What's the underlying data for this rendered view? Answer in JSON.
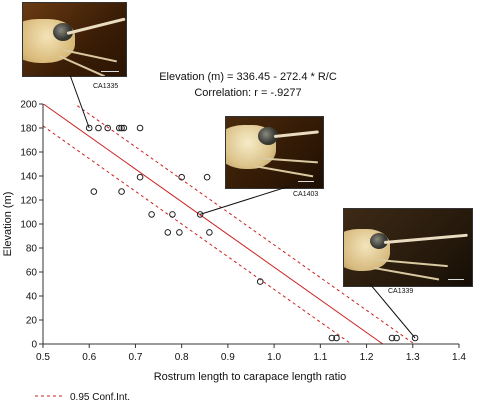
{
  "chart_data": {
    "type": "scatter",
    "title_line1": "Elevation (m) = 336.45 - 272.4  * R/C",
    "title_line2": "Correlation: r = -.9277",
    "xlabel": "Rostrum length to carapace length ratio",
    "ylabel": "Elevation (m)",
    "xlim": [
      0.5,
      1.4
    ],
    "ylim": [
      0,
      200
    ],
    "x_ticks": [
      "0.5",
      "0.6",
      "0.7",
      "0.8",
      "0.9",
      "1.0",
      "1.1",
      "1.2",
      "1.3",
      "1.4"
    ],
    "y_ticks": [
      "0",
      "20",
      "40",
      "60",
      "80",
      "100",
      "120",
      "140",
      "160",
      "180",
      "200"
    ],
    "grid": false,
    "regression": {
      "intercept": 336.45,
      "slope": -272.4
    },
    "confidence_band": {
      "label": "0.95 Conf.Int.",
      "upper_intercept": 355.0,
      "lower_intercept": 317.9
    },
    "points": [
      {
        "x": 0.6,
        "y": 180
      },
      {
        "x": 0.62,
        "y": 180
      },
      {
        "x": 0.64,
        "y": 180
      },
      {
        "x": 0.665,
        "y": 180
      },
      {
        "x": 0.67,
        "y": 180
      },
      {
        "x": 0.675,
        "y": 180
      },
      {
        "x": 0.71,
        "y": 180
      },
      {
        "x": 0.61,
        "y": 127
      },
      {
        "x": 0.67,
        "y": 127
      },
      {
        "x": 0.71,
        "y": 139
      },
      {
        "x": 0.8,
        "y": 139
      },
      {
        "x": 0.855,
        "y": 139
      },
      {
        "x": 0.735,
        "y": 108
      },
      {
        "x": 0.78,
        "y": 108
      },
      {
        "x": 0.84,
        "y": 108
      },
      {
        "x": 0.77,
        "y": 93
      },
      {
        "x": 0.795,
        "y": 93
      },
      {
        "x": 0.86,
        "y": 93
      },
      {
        "x": 0.97,
        "y": 52
      },
      {
        "x": 1.125,
        "y": 5
      },
      {
        "x": 1.135,
        "y": 5
      },
      {
        "x": 1.255,
        "y": 5
      },
      {
        "x": 1.265,
        "y": 5
      },
      {
        "x": 1.305,
        "y": 5
      }
    ],
    "colors": {
      "fit": "#cc2222",
      "points": "#222222",
      "axis": "#333333"
    }
  },
  "specimens": [
    {
      "label": "CA1335",
      "point": {
        "x": 0.6,
        "y": 180
      }
    },
    {
      "label": "CA1403",
      "point": {
        "x": 0.84,
        "y": 108
      }
    },
    {
      "label": "CA1339",
      "point": {
        "x": 1.305,
        "y": 5
      }
    }
  ]
}
